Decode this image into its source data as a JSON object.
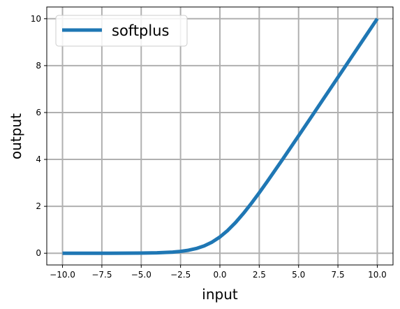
{
  "chart_data": {
    "type": "line",
    "xlabel": "input",
    "ylabel": "output",
    "xlim": [
      -11.0,
      11.0
    ],
    "ylim": [
      -0.5,
      10.5
    ],
    "x_ticks": [
      -10.0,
      -7.5,
      -5.0,
      -2.5,
      0.0,
      2.5,
      5.0,
      7.5,
      10.0
    ],
    "x_tick_labels": [
      "−10.0",
      "−7.5",
      "−5.0",
      "−2.5",
      "0.0",
      "2.5",
      "5.0",
      "7.5",
      "10.0"
    ],
    "y_ticks": [
      0,
      2,
      4,
      6,
      8,
      10
    ],
    "y_tick_labels": [
      "0",
      "2",
      "4",
      "6",
      "8",
      "10"
    ],
    "grid": true,
    "legend": {
      "placement": "top-left"
    },
    "series": [
      {
        "name": "softplus",
        "color": "#1f77b4",
        "x": [
          -10,
          -9,
          -8,
          -7,
          -6,
          -5,
          -4,
          -3,
          -2.5,
          -2,
          -1.5,
          -1,
          -0.5,
          0,
          0.5,
          1,
          1.5,
          2,
          2.5,
          3,
          4,
          5,
          6,
          7,
          8,
          9,
          10
        ],
        "y": [
          0.0,
          0.0001,
          0.0003,
          0.0009,
          0.0025,
          0.0067,
          0.0181,
          0.0486,
          0.079,
          0.127,
          0.201,
          0.313,
          0.474,
          0.693,
          0.974,
          1.313,
          1.701,
          2.127,
          2.579,
          3.049,
          4.018,
          5.007,
          6.002,
          7.001,
          8.0,
          9.0,
          10.0
        ]
      }
    ],
    "colors": {
      "grid": "#b0b0b0",
      "axes": "#000000"
    }
  }
}
